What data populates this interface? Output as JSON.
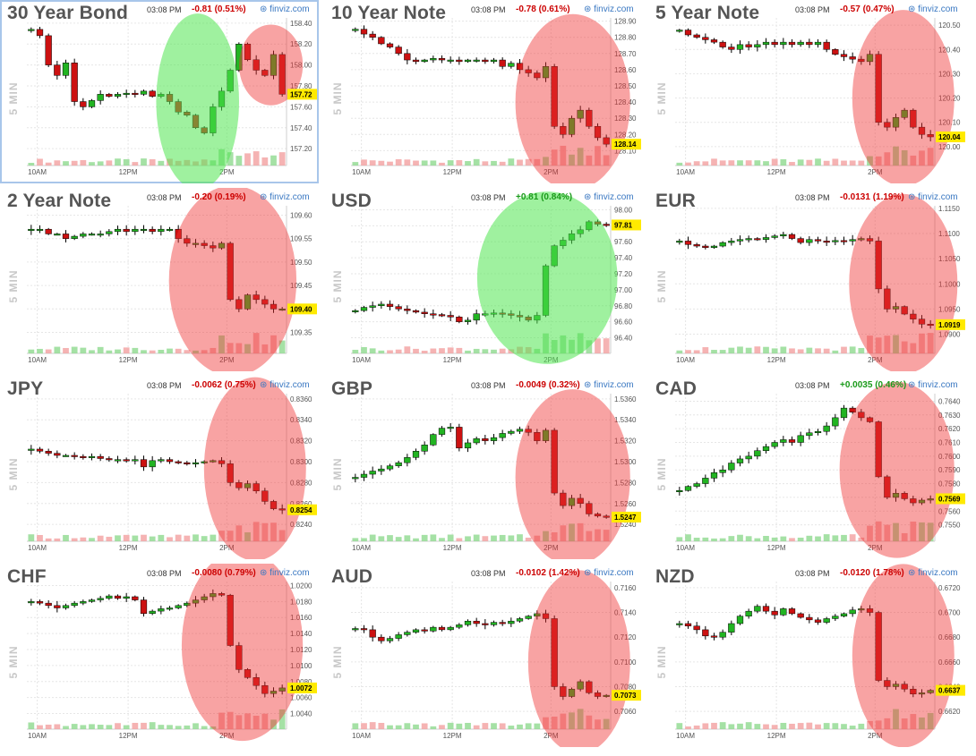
{
  "chart_data": [
    {
      "type": "candlestick",
      "title": "30 Year Bond",
      "time": "03:08 PM",
      "change": "-0.81 (0.51%)",
      "change_color": "#cc0000",
      "brand": "finviz.com",
      "ylabel": "5 MIN",
      "x_ticks": [
        "10AM",
        "12PM",
        "2PM"
      ],
      "y_ticks": [
        "158.40",
        "158.20",
        "158.00",
        "157.80",
        "157.60",
        "157.40",
        "157.20"
      ],
      "ylim": [
        157.15,
        158.45
      ],
      "last": "157.72",
      "selected": true,
      "close": [
        158.34,
        158.28,
        158.0,
        157.9,
        158.02,
        157.65,
        157.6,
        157.66,
        157.72,
        157.7,
        157.72,
        157.73,
        157.72,
        157.75,
        157.7,
        157.72,
        157.65,
        157.55,
        157.52,
        157.4,
        157.35,
        157.6,
        157.75,
        157.95,
        158.2,
        158.05,
        157.95,
        157.9,
        158.1,
        157.72
      ],
      "highlights": [
        {
          "color": "green",
          "x": 0.62,
          "y": 157.65,
          "rx": 0.13,
          "ry": 0.48
        },
        {
          "color": "red",
          "x": 0.85,
          "y": 158.0,
          "rx": 0.1,
          "ry": 0.22
        }
      ]
    },
    {
      "type": "candlestick",
      "title": "10 Year Note",
      "time": "03:08 PM",
      "change": "-0.78 (0.61%)",
      "change_color": "#cc0000",
      "brand": "finviz.com",
      "ylabel": "5 MIN",
      "x_ticks": [
        "10AM",
        "12PM",
        "2PM"
      ],
      "y_ticks": [
        "128.90",
        "128.80",
        "128.70",
        "128.60",
        "128.50",
        "128.40",
        "128.30",
        "128.20",
        "128.10"
      ],
      "ylim": [
        128.08,
        128.92
      ],
      "last": "128.14",
      "selected": false,
      "close": [
        128.85,
        128.82,
        128.8,
        128.76,
        128.74,
        128.7,
        128.66,
        128.65,
        128.66,
        128.67,
        128.66,
        128.66,
        128.65,
        128.66,
        128.66,
        128.65,
        128.66,
        128.62,
        128.64,
        128.6,
        128.58,
        128.55,
        128.62,
        128.25,
        128.2,
        128.3,
        128.35,
        128.25,
        128.18,
        128.14
      ],
      "highlights": [
        {
          "color": "red",
          "x": 0.78,
          "y": 128.4,
          "rx": 0.18,
          "ry": 0.48
        }
      ]
    },
    {
      "type": "candlestick",
      "title": "5 Year Note",
      "time": "03:08 PM",
      "change": "-0.57 (0.47%)",
      "change_color": "#cc0000",
      "brand": "finviz.com",
      "ylabel": "5 MIN",
      "x_ticks": [
        "10AM",
        "12PM",
        "2PM"
      ],
      "y_ticks": [
        "120.50",
        "120.40",
        "120.30",
        "120.20",
        "120.10",
        "120.00"
      ],
      "ylim": [
        119.97,
        120.53
      ],
      "last": "120.04",
      "selected": false,
      "close": [
        120.48,
        120.46,
        120.45,
        120.44,
        120.43,
        120.41,
        120.4,
        120.42,
        120.41,
        120.42,
        120.43,
        120.42,
        120.43,
        120.42,
        120.43,
        120.42,
        120.43,
        120.4,
        120.38,
        120.37,
        120.36,
        120.35,
        120.38,
        120.1,
        120.08,
        120.12,
        120.15,
        120.08,
        120.05,
        120.04
      ],
      "highlights": [
        {
          "color": "red",
          "x": 0.8,
          "y": 120.2,
          "rx": 0.16,
          "ry": 0.48
        }
      ]
    },
    {
      "type": "candlestick",
      "title": "2 Year Note",
      "time": "03:08 PM",
      "change": "-0.20 (0.19%)",
      "change_color": "#cc0000",
      "brand": "finviz.com",
      "ylabel": "5 MIN",
      "x_ticks": [
        "10AM",
        "12PM",
        "2PM"
      ],
      "y_ticks": [
        "109.60",
        "109.55",
        "109.50",
        "109.45",
        "109.40",
        "109.35"
      ],
      "ylim": [
        109.33,
        109.62
      ],
      "last": "109.40",
      "selected": false,
      "close": [
        109.57,
        109.57,
        109.56,
        109.56,
        109.55,
        109.555,
        109.56,
        109.56,
        109.56,
        109.565,
        109.57,
        109.565,
        109.57,
        109.57,
        109.565,
        109.57,
        109.57,
        109.55,
        109.54,
        109.54,
        109.535,
        109.53,
        109.54,
        109.42,
        109.4,
        109.43,
        109.42,
        109.41,
        109.4,
        109.4
      ],
      "highlights": [
        {
          "color": "red",
          "x": 0.73,
          "y": 109.46,
          "rx": 0.2,
          "ry": 0.52
        }
      ]
    },
    {
      "type": "candlestick",
      "title": "USD",
      "time": "03:08 PM",
      "change": "+0.81 (0.84%)",
      "change_color": "#199a19",
      "brand": "finviz.com",
      "ylabel": "5 MIN",
      "x_ticks": [
        "10AM",
        "12PM",
        "2PM"
      ],
      "y_ticks": [
        "98.00",
        "97.80",
        "97.60",
        "97.40",
        "97.20",
        "97.00",
        "96.80",
        "96.60",
        "96.40"
      ],
      "ylim": [
        96.35,
        98.05
      ],
      "last": "97.81",
      "selected": false,
      "close": [
        96.74,
        96.78,
        96.8,
        96.82,
        96.79,
        96.76,
        96.74,
        96.72,
        96.7,
        96.69,
        96.68,
        96.66,
        96.6,
        96.62,
        96.7,
        96.7,
        96.71,
        96.7,
        96.68,
        96.66,
        96.62,
        96.68,
        97.3,
        97.55,
        97.62,
        97.7,
        97.75,
        97.85,
        97.82,
        97.81
      ],
      "highlights": [
        {
          "color": "green",
          "x": 0.7,
          "y": 97.15,
          "rx": 0.22,
          "ry": 0.47
        }
      ]
    },
    {
      "type": "candlestick",
      "title": "EUR",
      "time": "03:08 PM",
      "change": "-0.0131 (1.19%)",
      "change_color": "#cc0000",
      "brand": "finviz.com",
      "ylabel": "5 MIN",
      "x_ticks": [
        "10AM",
        "12PM",
        "2PM"
      ],
      "y_ticks": [
        "1.1150",
        "1.1100",
        "1.1050",
        "1.1000",
        "1.0950",
        "1.0900"
      ],
      "ylim": [
        1.0885,
        1.1155
      ],
      "last": "1.0919",
      "selected": false,
      "close": [
        1.1085,
        1.1078,
        1.1075,
        1.1072,
        1.1075,
        1.1082,
        1.1085,
        1.1088,
        1.109,
        1.1088,
        1.1092,
        1.1095,
        1.1098,
        1.109,
        1.1082,
        1.1088,
        1.1085,
        1.1084,
        1.1086,
        1.1085,
        1.1088,
        1.109,
        1.1085,
        1.099,
        1.095,
        1.0955,
        1.094,
        1.093,
        1.092,
        1.0919
      ],
      "highlights": [
        {
          "color": "red",
          "x": 0.8,
          "y": 1.1,
          "rx": 0.17,
          "ry": 0.49
        }
      ]
    },
    {
      "type": "candlestick",
      "title": "JPY",
      "time": "03:08 PM",
      "change": "-0.0062 (0.75%)",
      "change_color": "#cc0000",
      "brand": "finviz.com",
      "ylabel": "5 MIN",
      "x_ticks": [
        "10AM",
        "12PM",
        "2PM"
      ],
      "y_ticks": [
        "0.8360",
        "0.8340",
        "0.8320",
        "0.8300",
        "0.8280",
        "0.8260",
        "0.8240"
      ],
      "ylim": [
        0.8235,
        0.8365
      ],
      "last": "0.8254",
      "selected": false,
      "close": [
        0.8312,
        0.831,
        0.8308,
        0.8306,
        0.8306,
        0.8305,
        0.8304,
        0.8305,
        0.8303,
        0.8302,
        0.8302,
        0.8301,
        0.8302,
        0.8295,
        0.8301,
        0.8302,
        0.83,
        0.8299,
        0.8298,
        0.8299,
        0.83,
        0.8301,
        0.8298,
        0.828,
        0.8275,
        0.8279,
        0.8272,
        0.8262,
        0.8255,
        0.8254
      ],
      "highlights": [
        {
          "color": "red",
          "x": 0.8,
          "y": 0.8293,
          "rx": 0.16,
          "ry": 0.5
        }
      ]
    },
    {
      "type": "candlestick",
      "title": "GBP",
      "time": "03:08 PM",
      "change": "-0.0049 (0.32%)",
      "change_color": "#cc0000",
      "brand": "finviz.com",
      "ylabel": "5 MIN",
      "x_ticks": [
        "10AM",
        "12PM",
        "2PM"
      ],
      "y_ticks": [
        "1.5360",
        "1.5340",
        "1.5320",
        "1.5300",
        "1.5280",
        "1.5260",
        "1.5240"
      ],
      "ylim": [
        1.5235,
        1.5365
      ],
      "last": "1.5247",
      "selected": false,
      "close": [
        1.5285,
        1.5288,
        1.5291,
        1.5293,
        1.5296,
        1.5299,
        1.5304,
        1.531,
        1.5316,
        1.5326,
        1.5332,
        1.5333,
        1.5313,
        1.5318,
        1.5322,
        1.532,
        1.5323,
        1.5327,
        1.5329,
        1.5331,
        1.5328,
        1.532,
        1.533,
        1.527,
        1.5258,
        1.5265,
        1.526,
        1.525,
        1.5248,
        1.5247
      ],
      "highlights": [
        {
          "color": "red",
          "x": 0.78,
          "y": 1.5285,
          "rx": 0.18,
          "ry": 0.48
        }
      ]
    },
    {
      "type": "candlestick",
      "title": "CAD",
      "time": "03:08 PM",
      "change": "+0.0035 (0.46%)",
      "change_color": "#199a19",
      "brand": "finviz.com",
      "ylabel": "5 MIN",
      "x_ticks": [
        "10AM",
        "12PM",
        "2PM"
      ],
      "y_ticks": [
        "0.7640",
        "0.7630",
        "0.7620",
        "0.7610",
        "0.7600",
        "0.7590",
        "0.7580",
        "0.7570",
        "0.7560",
        "0.7550"
      ],
      "ylim": [
        0.75465,
        0.76455
      ],
      "last": "0.7569",
      "selected": false,
      "close": [
        0.7575,
        0.7578,
        0.758,
        0.7584,
        0.7588,
        0.759,
        0.7595,
        0.7598,
        0.76,
        0.7604,
        0.7607,
        0.761,
        0.7612,
        0.761,
        0.7615,
        0.7617,
        0.7618,
        0.7622,
        0.7628,
        0.7635,
        0.7632,
        0.7628,
        0.7625,
        0.7585,
        0.757,
        0.7573,
        0.7569,
        0.7566,
        0.7568,
        0.7569
      ],
      "highlights": [
        {
          "color": "red",
          "x": 0.78,
          "y": 0.759,
          "rx": 0.18,
          "ry": 0.48
        }
      ]
    },
    {
      "type": "candlestick",
      "title": "CHF",
      "time": "03:08 PM",
      "change": "-0.0080 (0.79%)",
      "change_color": "#cc0000",
      "brand": "finviz.com",
      "ylabel": "5 MIN",
      "x_ticks": [
        "10AM",
        "12PM",
        "2PM"
      ],
      "y_ticks": [
        "1.0200",
        "1.0180",
        "1.0160",
        "1.0140",
        "1.0120",
        "1.0100",
        "1.0080",
        "1.0060",
        "1.0040"
      ],
      "ylim": [
        1.0035,
        1.0205
      ],
      "last": "1.0072",
      "selected": false,
      "close": [
        1.018,
        1.0178,
        1.0175,
        1.0172,
        1.0175,
        1.0178,
        1.018,
        1.0182,
        1.0184,
        1.0187,
        1.0184,
        1.0186,
        1.0182,
        1.0165,
        1.0168,
        1.0171,
        1.0172,
        1.0175,
        1.0178,
        1.0182,
        1.0186,
        1.019,
        1.0188,
        1.0125,
        1.0095,
        1.0085,
        1.0075,
        1.0065,
        1.0068,
        1.0072
      ],
      "highlights": [
        {
          "color": "red",
          "x": 0.76,
          "y": 1.0125,
          "rx": 0.19,
          "ry": 0.52
        }
      ]
    },
    {
      "type": "candlestick",
      "title": "AUD",
      "time": "03:08 PM",
      "change": "-0.0102 (1.42%)",
      "change_color": "#cc0000",
      "brand": "finviz.com",
      "ylabel": "5 MIN",
      "x_ticks": [
        "10AM",
        "12PM",
        "2PM"
      ],
      "y_ticks": [
        "0.7160",
        "0.7140",
        "0.7120",
        "0.7100",
        "0.7080",
        "0.7060"
      ],
      "ylim": [
        0.7055,
        0.7165
      ],
      "last": "0.7073",
      "selected": false,
      "close": [
        0.7127,
        0.7126,
        0.712,
        0.7117,
        0.7119,
        0.7122,
        0.7124,
        0.7126,
        0.7125,
        0.7128,
        0.7126,
        0.7128,
        0.713,
        0.7133,
        0.7131,
        0.713,
        0.7132,
        0.7131,
        0.7133,
        0.7135,
        0.7137,
        0.7139,
        0.7135,
        0.708,
        0.7072,
        0.7078,
        0.7084,
        0.7075,
        0.7072,
        0.7073
      ],
      "highlights": [
        {
          "color": "red",
          "x": 0.8,
          "y": 0.71,
          "rx": 0.16,
          "ry": 0.5
        }
      ]
    },
    {
      "type": "candlestick",
      "title": "NZD",
      "time": "03:08 PM",
      "change": "-0.0120 (1.78%)",
      "change_color": "#cc0000",
      "brand": "finviz.com",
      "ylabel": "5 MIN",
      "x_ticks": [
        "10AM",
        "12PM",
        "2PM"
      ],
      "y_ticks": [
        "0.6720",
        "0.6700",
        "0.6680",
        "0.6660",
        "0.6640",
        "0.6620"
      ],
      "ylim": [
        0.6615,
        0.6725
      ],
      "last": "0.6637",
      "selected": false,
      "close": [
        0.6691,
        0.6689,
        0.6686,
        0.6681,
        0.668,
        0.6684,
        0.6691,
        0.6697,
        0.6701,
        0.6705,
        0.6701,
        0.6698,
        0.6703,
        0.6699,
        0.6696,
        0.6694,
        0.6692,
        0.6695,
        0.6697,
        0.6699,
        0.6702,
        0.6703,
        0.67,
        0.6645,
        0.664,
        0.6642,
        0.6638,
        0.6634,
        0.6635,
        0.6637
      ],
      "highlights": [
        {
          "color": "red",
          "x": 0.8,
          "y": 0.6665,
          "rx": 0.16,
          "ry": 0.5
        }
      ]
    }
  ]
}
